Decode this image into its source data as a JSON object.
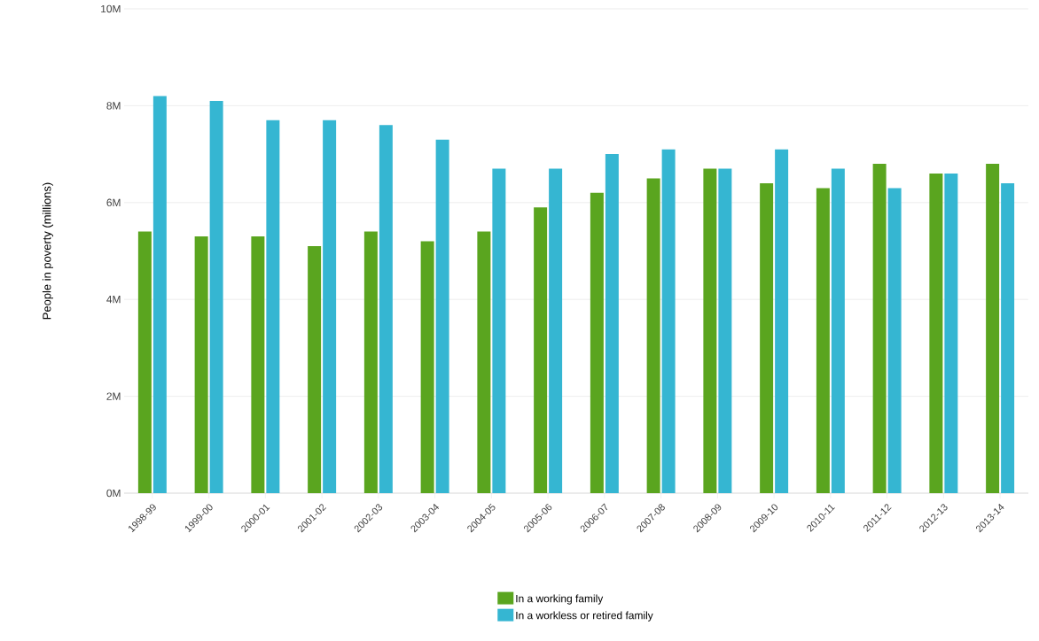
{
  "chart_data": {
    "type": "bar",
    "ylabel": "People in poverty (millions)",
    "categories": [
      "1998-99",
      "1999-00",
      "2000-01",
      "2001-02",
      "2002-03",
      "2003-04",
      "2004-05",
      "2005-06",
      "2006-07",
      "2007-08",
      "2008-09",
      "2009-10",
      "2010-11",
      "2011-12",
      "2012-13",
      "2013-14"
    ],
    "series": [
      {
        "name": "In a working family",
        "color": "#5aa51f",
        "values": [
          5.4,
          5.3,
          5.3,
          5.1,
          5.4,
          5.2,
          5.4,
          5.9,
          6.2,
          6.5,
          6.7,
          6.4,
          6.3,
          6.8,
          6.6,
          6.8
        ]
      },
      {
        "name": "In a workless or retired family",
        "color": "#35b6d2",
        "values": [
          8.2,
          8.1,
          7.7,
          7.7,
          7.6,
          7.3,
          6.7,
          6.7,
          7.0,
          7.1,
          6.7,
          7.1,
          6.7,
          6.3,
          6.6,
          6.4
        ]
      }
    ],
    "ylim": [
      0,
      10
    ],
    "yticks": [
      {
        "value": 0,
        "label": "0M"
      },
      {
        "value": 2,
        "label": "2M"
      },
      {
        "value": 4,
        "label": "4M"
      },
      {
        "value": 6,
        "label": "6M"
      },
      {
        "value": 8,
        "label": "8M"
      },
      {
        "value": 10,
        "label": "10M"
      }
    ],
    "grid": "y",
    "legend": "bottom"
  }
}
